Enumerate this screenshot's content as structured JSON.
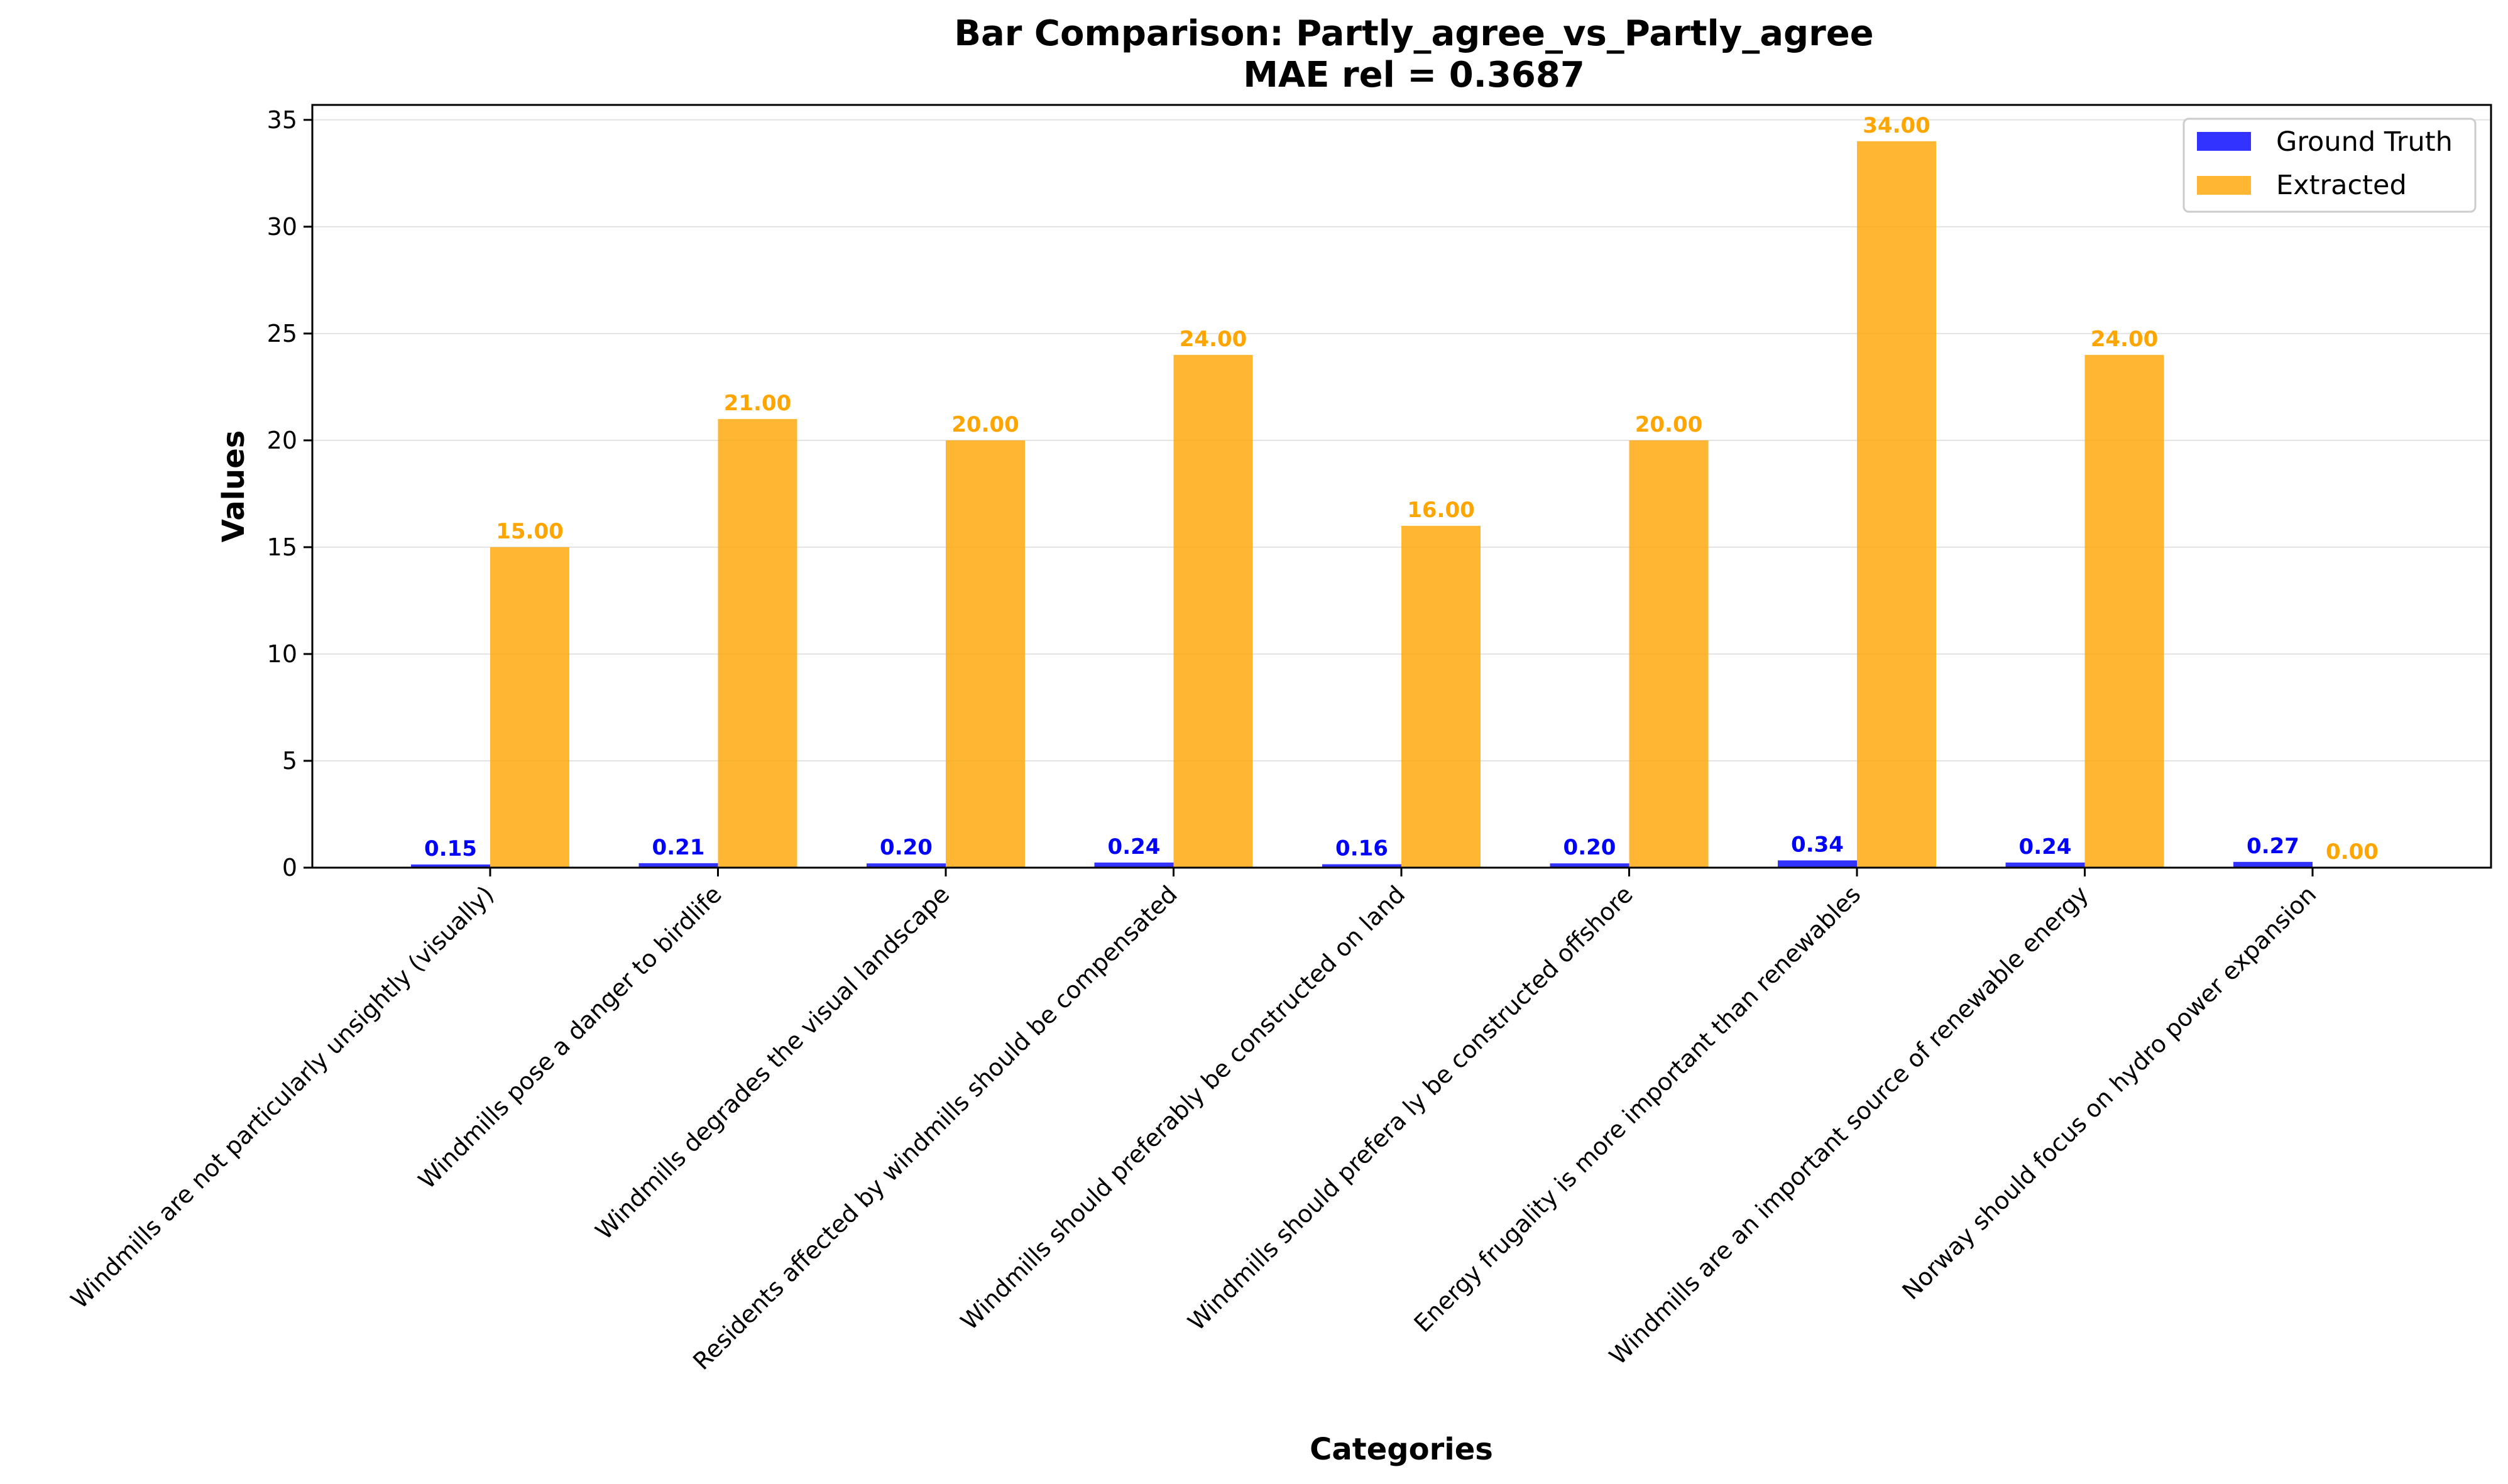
{
  "chart_data": {
    "type": "bar",
    "title": "Bar Comparison: Partly_agree_vs_Partly_agree",
    "subtitle": "MAE rel = 0.3687",
    "xlabel": "Categories",
    "ylabel": "Values",
    "ylim": [
      0,
      35.7
    ],
    "yticks": [
      "0",
      "5",
      "10",
      "15",
      "20",
      "25",
      "30",
      "35"
    ],
    "grid": "horizontal",
    "legend_position": "upper-right",
    "categories": [
      "Windmills are not particularly unsightly (visually)",
      "Windmills pose a danger to birdlife",
      "Windmills degrades the visual landscape",
      "Residents affected by windmills should be compensated",
      "Windmills should preferably be constructed on land",
      "Windmills should prefera ly be constructed offshore",
      "Energy frugality is more important than renewables",
      "Windmills are an important source of renewable energy",
      "Norway should focus on hydro power expansion"
    ],
    "series": [
      {
        "name": "Ground Truth",
        "color": "#0000ff",
        "values": [
          0.15,
          0.21,
          0.2,
          0.24,
          0.16,
          0.2,
          0.34,
          0.24,
          0.27
        ],
        "labels": [
          "0.15",
          "0.21",
          "0.20",
          "0.24",
          "0.16",
          "0.20",
          "0.34",
          "0.24",
          "0.27"
        ]
      },
      {
        "name": "Extracted",
        "color": "#ffa500",
        "values": [
          15.0,
          21.0,
          20.0,
          24.0,
          16.0,
          20.0,
          34.0,
          24.0,
          0.0
        ],
        "labels": [
          "15.00",
          "21.00",
          "20.00",
          "24.00",
          "16.00",
          "20.00",
          "34.00",
          "24.00",
          "0.00"
        ]
      }
    ]
  }
}
